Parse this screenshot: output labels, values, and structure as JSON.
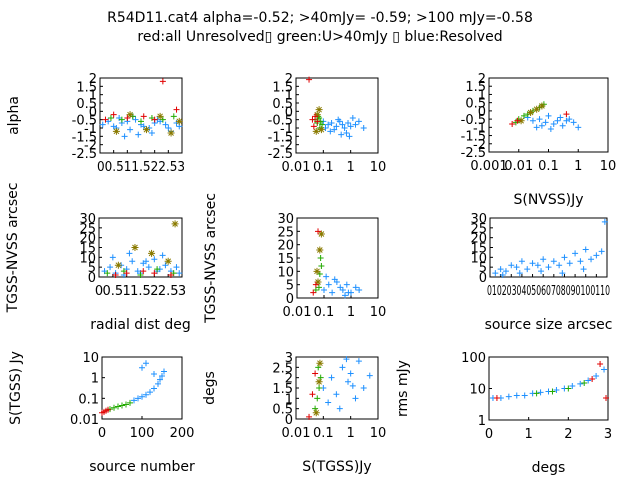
{
  "title_line1": "R54D11.cat4 alpha=-0.52; >40mJy= -0.59; >100 mJy=-0.58",
  "title_line2": "red:all Unresolved▯ green:U>40mJy ▯ blue:Resolved",
  "colors": {
    "red": "#e00000",
    "green": "#22aa00",
    "blue": "#1e90ff",
    "olive": "#8a7a00"
  },
  "chart_data": [
    {
      "type": "scatter",
      "ylabel": "alpha",
      "xlabel": "",
      "xlim": [
        0,
        3
      ],
      "ylim": [
        -2.5,
        2
      ],
      "xticks": [
        "0",
        "0.5",
        "1",
        "1.5",
        "2",
        "2.5",
        "3"
      ],
      "xtick_labels_row": "00.511.522.53",
      "yticks": [
        "2",
        "1.5",
        "1",
        "0.5",
        "0",
        "-0.5",
        "-1",
        "-1.5",
        "-2",
        "-2.5"
      ],
      "series": [
        {
          "color": "blue",
          "x": [
            0.1,
            0.3,
            0.5,
            0.6,
            0.8,
            1.0,
            1.1,
            1.3,
            1.5,
            1.6,
            1.8,
            2.0,
            2.2,
            2.4,
            2.6,
            2.8,
            2.9,
            0.9,
            1.4,
            1.9,
            2.5,
            0.7,
            1.2,
            2.1
          ],
          "y": [
            -0.8,
            -0.6,
            -0.9,
            -1.0,
            -0.7,
            -0.6,
            -1.1,
            -0.5,
            -0.8,
            -0.9,
            -1.0,
            -0.7,
            -0.6,
            -0.8,
            -1.2,
            -0.7,
            -0.9,
            -1.5,
            -1.4,
            -1.3,
            -1.0,
            -0.4,
            -0.3,
            -0.5
          ]
        },
        {
          "color": "green",
          "x": [
            0.4,
            0.8,
            1.2,
            1.5,
            1.9,
            2.3,
            2.7
          ],
          "y": [
            -0.4,
            -0.5,
            -0.3,
            -0.6,
            -0.4,
            -0.5,
            -0.3
          ]
        },
        {
          "color": "olive",
          "x": [
            0.6,
            1.1,
            1.7,
            2.2,
            2.6,
            2.9
          ],
          "y": [
            -1.2,
            -0.2,
            -1.1,
            -0.3,
            -1.3,
            -0.6
          ]
        },
        {
          "color": "red",
          "x": [
            0.2,
            0.5,
            1.0,
            1.6,
            2.0,
            2.3,
            2.8
          ],
          "y": [
            -0.5,
            -0.2,
            -0.4,
            -0.3,
            -0.5,
            1.8,
            0.1
          ]
        }
      ]
    },
    {
      "type": "scatter",
      "ylabel": "",
      "xlabel": "",
      "xscale": "log",
      "xlim": [
        0.01,
        10
      ],
      "ylim": [
        -2.5,
        2
      ],
      "xticks": [
        "0.01",
        "0.1",
        "1",
        "10"
      ],
      "yticks": [
        "2",
        "1.5",
        "1",
        "0.5",
        "0",
        "-0.5",
        "-1",
        "-1.5",
        "-2",
        "-2.5"
      ],
      "series": [
        {
          "color": "blue",
          "x": [
            0.1,
            0.15,
            0.2,
            0.3,
            0.4,
            0.5,
            0.6,
            0.8,
            1.0,
            1.5,
            2.0,
            3.0,
            0.12,
            0.25,
            0.35,
            0.7,
            0.9,
            1.2,
            0.18,
            0.45
          ],
          "y": [
            -0.6,
            -0.8,
            -0.7,
            -0.9,
            -0.6,
            -0.8,
            -1.0,
            -0.7,
            -0.9,
            -0.8,
            -0.6,
            -1.0,
            -1.0,
            -1.1,
            -0.5,
            -1.3,
            -1.5,
            -0.4,
            -1.2,
            -1.4
          ]
        },
        {
          "color": "green",
          "x": [
            0.05,
            0.06,
            0.07,
            0.08,
            0.09,
            0.065,
            0.075
          ],
          "y": [
            -0.5,
            -0.7,
            -0.4,
            -0.6,
            -0.8,
            -0.3,
            -1.0
          ]
        },
        {
          "color": "olive",
          "x": [
            0.055,
            0.07,
            0.085,
            0.06
          ],
          "y": [
            -1.2,
            0.1,
            -1.1,
            -0.2
          ]
        },
        {
          "color": "red",
          "x": [
            0.04,
            0.045,
            0.05,
            0.06,
            0.03
          ],
          "y": [
            -0.5,
            -0.9,
            -0.3,
            -0.6,
            1.9
          ]
        }
      ]
    },
    {
      "type": "scatter",
      "ylabel": "",
      "xlabel": "S(NVSS)Jy",
      "xscale": "log",
      "xlim": [
        0.001,
        10
      ],
      "ylim": [
        -2.5,
        2
      ],
      "xticks": [
        "0.001",
        "0.01",
        "0.1",
        "1",
        "10"
      ],
      "yticks": [
        "2",
        "1.5",
        "1",
        "0.5",
        "0",
        "-0.5",
        "-1",
        "-1.5",
        "-2",
        "-2.5"
      ],
      "series": [
        {
          "color": "blue",
          "x": [
            0.02,
            0.03,
            0.05,
            0.08,
            0.1,
            0.15,
            0.2,
            0.3,
            0.5,
            0.7,
            1.0,
            0.04,
            0.06,
            0.12,
            0.25,
            0.4
          ],
          "y": [
            -0.4,
            -0.6,
            -0.5,
            -0.7,
            -0.3,
            -0.8,
            -0.6,
            -0.9,
            -0.5,
            -0.7,
            -1.0,
            -1.0,
            -0.9,
            -1.1,
            -0.4,
            -0.6
          ]
        },
        {
          "color": "green",
          "x": [
            0.008,
            0.01,
            0.015,
            0.02,
            0.03,
            0.05,
            0.07
          ],
          "y": [
            -0.7,
            -0.5,
            -0.3,
            -0.2,
            0.0,
            0.2,
            0.4
          ]
        },
        {
          "color": "olive",
          "x": [
            0.012,
            0.025,
            0.04,
            0.06
          ],
          "y": [
            -0.6,
            -0.1,
            0.1,
            0.3
          ]
        },
        {
          "color": "red",
          "x": [
            0.006,
            0.009,
            0.4
          ],
          "y": [
            -0.8,
            -0.6,
            -0.2
          ]
        }
      ]
    },
    {
      "type": "scatter",
      "ylabel": "TGSS-NVSS arcsec",
      "xlabel": "radial dist deg",
      "xlim": [
        0,
        3
      ],
      "ylim": [
        0,
        30
      ],
      "xticks": [
        "0",
        "0.5",
        "1",
        "1.5",
        "2",
        "2.5",
        "3"
      ],
      "yticks": [
        "30",
        "25",
        "20",
        "15",
        "10",
        "5",
        "0"
      ],
      "series": [
        {
          "color": "blue",
          "x": [
            0.2,
            0.4,
            0.6,
            0.8,
            1.0,
            1.2,
            1.4,
            1.6,
            1.8,
            2.0,
            2.2,
            2.4,
            2.6,
            2.8,
            0.5,
            1.1,
            1.7,
            2.3,
            2.9,
            0.9,
            1.5,
            2.1
          ],
          "y": [
            3,
            5,
            2,
            6,
            4,
            8,
            3,
            7,
            5,
            9,
            4,
            6,
            3,
            5,
            10,
            12,
            8,
            11,
            2,
            1,
            2,
            3
          ]
        },
        {
          "color": "green",
          "x": [
            0.3,
            0.9,
            1.5,
            2.1,
            2.7
          ],
          "y": [
            2,
            3,
            1,
            4,
            2
          ]
        },
        {
          "color": "olive",
          "x": [
            0.7,
            1.3,
            1.9,
            2.5,
            2.75
          ],
          "y": [
            6,
            15,
            12,
            8,
            27
          ]
        },
        {
          "color": "red",
          "x": [
            0.6,
            1.0,
            1.6,
            2.0,
            2.6
          ],
          "y": [
            1,
            2,
            3,
            2,
            1
          ]
        }
      ]
    },
    {
      "type": "scatter",
      "ylabel": "TGSS-NVSS arcsec",
      "xlabel": "",
      "xscale": "log",
      "xlim": [
        0.01,
        10
      ],
      "ylim": [
        0,
        30
      ],
      "xticks": [
        "0.01",
        "0.1",
        "1",
        "10"
      ],
      "yticks": [
        "30",
        "25",
        "20",
        "15",
        "10",
        "5",
        "0"
      ],
      "series": [
        {
          "color": "blue",
          "x": [
            0.1,
            0.15,
            0.2,
            0.3,
            0.4,
            0.5,
            0.7,
            1.0,
            1.5,
            2.0,
            0.12,
            0.25,
            0.6,
            0.8
          ],
          "y": [
            3,
            5,
            2,
            6,
            4,
            3,
            5,
            2,
            4,
            3,
            8,
            7,
            1,
            2
          ]
        },
        {
          "color": "green",
          "x": [
            0.05,
            0.06,
            0.07,
            0.08,
            0.065,
            0.075
          ],
          "y": [
            3,
            6,
            9,
            12,
            4,
            15
          ]
        },
        {
          "color": "olive",
          "x": [
            0.055,
            0.07,
            0.08,
            0.06
          ],
          "y": [
            10,
            18,
            24,
            6
          ]
        },
        {
          "color": "red",
          "x": [
            0.04,
            0.05,
            0.06
          ],
          "y": [
            2,
            5,
            25
          ]
        }
      ]
    },
    {
      "type": "scatter",
      "ylabel": "",
      "xlabel": "source size arcsec",
      "xlim": [
        0,
        110
      ],
      "ylim": [
        0,
        30
      ],
      "xticks": [
        "0",
        "10",
        "20",
        "30",
        "40",
        "50",
        "60",
        "70",
        "80",
        "90",
        "100",
        "110"
      ],
      "xtick_labels_row": "0102030405060708090100110",
      "yticks": [
        "30",
        "25",
        "20",
        "15",
        "10",
        "5",
        "0"
      ],
      "series": [
        {
          "color": "blue",
          "x": [
            5,
            10,
            15,
            20,
            25,
            30,
            35,
            40,
            45,
            50,
            55,
            60,
            65,
            70,
            75,
            80,
            85,
            90,
            95,
            100,
            105,
            108,
            12,
            28,
            48,
            68,
            88
          ],
          "y": [
            2,
            4,
            3,
            6,
            5,
            8,
            4,
            7,
            6,
            9,
            5,
            8,
            6,
            10,
            7,
            12,
            8,
            14,
            9,
            11,
            13,
            28,
            1,
            2,
            3,
            2,
            4
          ]
        }
      ]
    },
    {
      "type": "scatter",
      "ylabel": "S(TGSS) Jy",
      "xlabel": "source number",
      "yscale": "log",
      "xlim": [
        0,
        200
      ],
      "ylim": [
        0.01,
        10
      ],
      "xticks": [
        "0",
        "100",
        "200"
      ],
      "yticks": [
        "10",
        "1",
        "0.1",
        "0.01"
      ],
      "series": [
        {
          "color": "blue",
          "x": [
            80,
            90,
            100,
            110,
            120,
            130,
            140,
            145,
            150,
            155,
            100,
            110,
            130
          ],
          "y": [
            0.08,
            0.1,
            0.12,
            0.15,
            0.2,
            0.3,
            0.5,
            0.8,
            1.2,
            2.0,
            3.0,
            5.0,
            1.5
          ]
        },
        {
          "color": "green",
          "x": [
            20,
            30,
            40,
            50,
            60,
            70
          ],
          "y": [
            0.03,
            0.035,
            0.04,
            0.045,
            0.05,
            0.06
          ]
        },
        {
          "color": "red",
          "x": [
            0,
            5,
            10,
            15
          ],
          "y": [
            0.02,
            0.022,
            0.025,
            0.028
          ]
        }
      ]
    },
    {
      "type": "scatter",
      "ylabel": "degs",
      "xlabel": "S(TGSS)Jy",
      "xscale": "log",
      "xlim": [
        0.01,
        10
      ],
      "ylim": [
        0,
        3
      ],
      "xticks": [
        "0.01",
        "0.1",
        "1",
        "10"
      ],
      "yticks": [
        "3",
        "2.5",
        "2",
        "1.5",
        "1",
        "0.5",
        "0"
      ],
      "series": [
        {
          "color": "blue",
          "x": [
            0.1,
            0.2,
            0.3,
            0.5,
            0.8,
            1.0,
            1.5,
            2.0,
            3.0,
            5.0,
            0.15,
            0.4,
            0.7,
            1.2
          ],
          "y": [
            1.5,
            2.0,
            1.2,
            2.5,
            1.8,
            2.2,
            1.0,
            2.8,
            1.5,
            2.1,
            0.8,
            0.5,
            2.9,
            1.6
          ]
        },
        {
          "color": "green",
          "x": [
            0.05,
            0.06,
            0.07,
            0.08,
            0.065
          ],
          "y": [
            0.5,
            1.0,
            1.5,
            2.0,
            2.5
          ]
        },
        {
          "color": "olive",
          "x": [
            0.055,
            0.07,
            0.075
          ],
          "y": [
            0.3,
            1.8,
            2.7
          ]
        },
        {
          "color": "red",
          "x": [
            0.03,
            0.04,
            0.05
          ],
          "y": [
            0.1,
            1.2,
            2.2
          ]
        }
      ]
    },
    {
      "type": "scatter",
      "ylabel": "rms mJy",
      "xlabel": "degs",
      "yscale": "log",
      "xlim": [
        0,
        3
      ],
      "ylim": [
        1,
        100
      ],
      "xticks": [
        "0",
        "1",
        "2",
        "3"
      ],
      "yticks": [
        "100",
        "10",
        "1"
      ],
      "series": [
        {
          "color": "blue",
          "x": [
            0.1,
            0.3,
            0.5,
            0.7,
            0.9,
            1.1,
            1.3,
            1.5,
            1.7,
            1.9,
            2.1,
            2.3,
            2.5,
            2.7,
            2.9
          ],
          "y": [
            5,
            5,
            5.5,
            6,
            6,
            7,
            7.5,
            8,
            9,
            10,
            12,
            14,
            18,
            25,
            40
          ]
        },
        {
          "color": "green",
          "x": [
            1.2,
            1.6,
            2.0,
            2.4
          ],
          "y": [
            7,
            8,
            10,
            15
          ]
        },
        {
          "color": "red",
          "x": [
            0.2,
            2.6,
            2.8,
            2.95
          ],
          "y": [
            5,
            20,
            60,
            5
          ]
        }
      ]
    }
  ]
}
